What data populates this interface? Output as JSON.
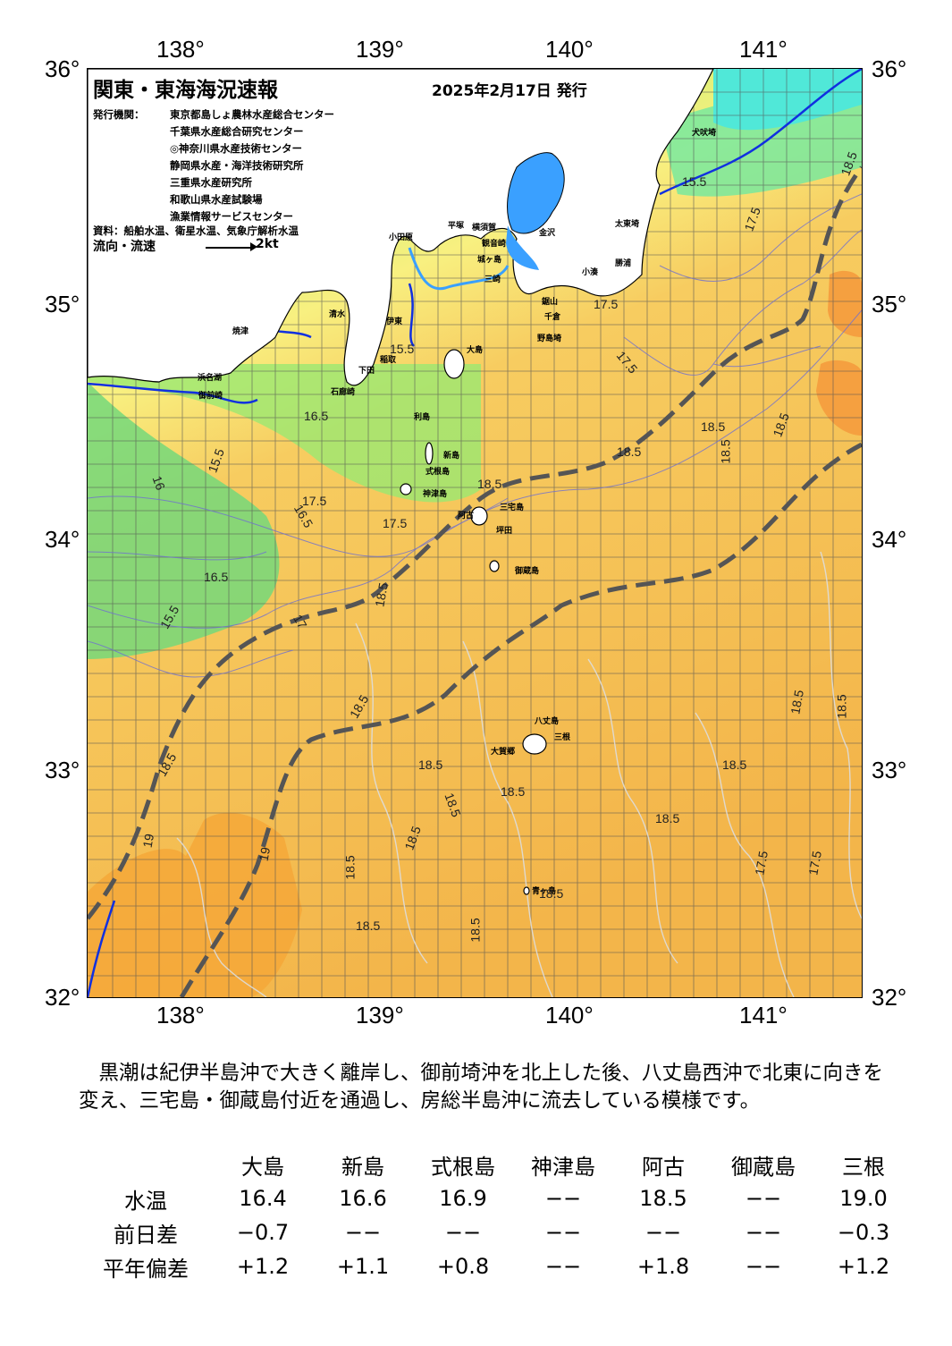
{
  "title": "関東・東海海況速報",
  "issue_date": "2025年2月17日 発行",
  "agencies": {
    "label": "発行機関：",
    "list": [
      "東京都島しょ農林水産総合センター",
      "千葉県水産総合研究センター",
      "◎神奈川県水産技術センター",
      "静岡県水産・海洋技術研究所",
      "三重県水産研究所",
      "和歌山県水産試験場",
      "漁業情報サービスセンター"
    ]
  },
  "source_note": "資料：船舶水温、衛星水温、気象庁解析水温",
  "legend": {
    "label": "流向・流速",
    "value": "2kt"
  },
  "axes": {
    "lon_labels": [
      "138°",
      "139°",
      "140°",
      "141°"
    ],
    "lat_labels": [
      "36°",
      "35°",
      "34°",
      "33°",
      "32°"
    ]
  },
  "places": [
    {
      "name": "犬吠埼"
    },
    {
      "name": "太東埼"
    },
    {
      "name": "小湊"
    },
    {
      "name": "勝浦"
    },
    {
      "name": "鋸山"
    },
    {
      "name": "千倉"
    },
    {
      "name": "野島埼"
    },
    {
      "name": "小田原"
    },
    {
      "name": "平塚"
    },
    {
      "name": "横須賀"
    },
    {
      "name": "観音崎"
    },
    {
      "name": "金沢"
    },
    {
      "name": "城ヶ島"
    },
    {
      "name": "三崎"
    },
    {
      "name": "清水"
    },
    {
      "name": "焼津"
    },
    {
      "name": "伊東"
    },
    {
      "name": "稲取"
    },
    {
      "name": "下田"
    },
    {
      "name": "石廊崎"
    },
    {
      "name": "御前崎"
    },
    {
      "name": "浜名湖"
    },
    {
      "name": "大島"
    },
    {
      "name": "利島"
    },
    {
      "name": "新島"
    },
    {
      "name": "式根島"
    },
    {
      "name": "神津島"
    },
    {
      "name": "三宅島"
    },
    {
      "name": "阿古"
    },
    {
      "name": "坪田"
    },
    {
      "name": "御蔵島"
    },
    {
      "name": "八丈島"
    },
    {
      "name": "三根"
    },
    {
      "name": "大賀郷"
    },
    {
      "name": "青ヶ島"
    }
  ],
  "contour_labels": [
    "15.5",
    "16",
    "16.5",
    "17",
    "17.5",
    "18",
    "18.5",
    "19"
  ],
  "summary": "黒潮は紀伊半島沖で大きく離岸し、御前埼沖を北上した後、八丈島西沖で北東に向きを変え、三宅島・御蔵島付近を通過し、房総半島沖に流去している模様です。",
  "observations": {
    "stations": [
      "大島",
      "新島",
      "式根島",
      "神津島",
      "阿古",
      "御蔵島",
      "三根"
    ],
    "rows": [
      {
        "label": "水温",
        "values": [
          "16.4",
          "16.6",
          "16.9",
          "−−",
          "18.5",
          "−−",
          "19.0"
        ]
      },
      {
        "label": "前日差",
        "values": [
          "−0.7",
          "−−",
          "−−",
          "−−",
          "−−",
          "−−",
          "−0.3"
        ]
      },
      {
        "label": "平年偏差",
        "values": [
          "+1.2",
          "+1.1",
          "+0.8",
          "−−",
          "+1.8",
          "−−",
          "+1.2"
        ]
      }
    ]
  },
  "colors": {
    "land": "#ffffff",
    "kuroshio_axis": "#555555",
    "coast_contour": "#1030e0",
    "bay": "#3aa0ff",
    "warm": "#f5b84a",
    "cool": "#70e080"
  }
}
